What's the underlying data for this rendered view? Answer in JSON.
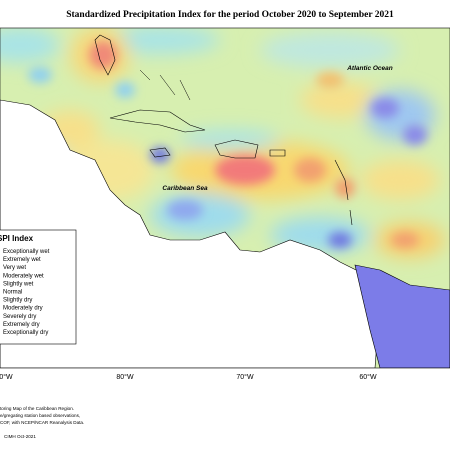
{
  "title": "Standardized Precipitation Index for the period October 2020 to September 2021",
  "ocean_labels": [
    "Atlantic Ocean",
    "Caribbean Sea"
  ],
  "legend": {
    "title": "SPI Index",
    "entries": [
      "Exceptionally wet",
      "Extremely wet",
      "Very wet",
      "Moderately wet",
      "Slightly wet",
      "Normal",
      "Slightly dry",
      "Moderately dry",
      "Severely dry",
      "Extremely dry",
      "Exceptionally dry"
    ]
  },
  "longitude_labels": [
    "0°W",
    "80°W",
    "70°W",
    "60°W"
  ],
  "footnotes": [
    "toring Map of the Caribbean Region.",
    "e/gregating station based observations,",
    "COF, with NCEP/NCAR Reanalysis Data."
  ],
  "credit": "CIMH Oct-2021"
}
